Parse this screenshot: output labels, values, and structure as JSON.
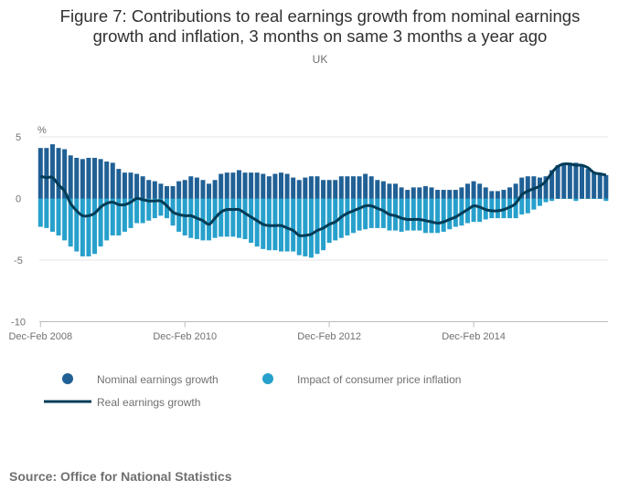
{
  "chart_data": {
    "type": "bar",
    "title_lines": [
      "Figure 7: Contributions to real earnings growth from nominal earnings",
      "growth and inflation, 3 months on same 3 months a year ago"
    ],
    "subtitle": "UK",
    "ylabel": "%",
    "ylim": [
      -10,
      5
    ],
    "yticks": [
      5,
      0,
      -5,
      -10
    ],
    "xtick_labels": [
      {
        "label": "Dec-Feb 2008",
        "index": 0
      },
      {
        "label": "Dec-Feb 2010",
        "index": 24
      },
      {
        "label": "Dec-Feb 2012",
        "index": 48
      },
      {
        "label": "Dec-Feb 2014",
        "index": 72
      }
    ],
    "grid": true,
    "stacked": true,
    "legend_placement": "bottom",
    "series": [
      {
        "name": "Nominal earnings growth",
        "kind": "bar",
        "color": "#206095",
        "values": [
          4.1,
          4.1,
          4.4,
          4.1,
          4.0,
          3.5,
          3.3,
          3.2,
          3.3,
          3.3,
          3.2,
          3.0,
          2.9,
          2.4,
          2.1,
          2.1,
          2.0,
          1.8,
          1.5,
          1.4,
          1.2,
          1.0,
          1.0,
          1.4,
          1.5,
          1.8,
          1.7,
          1.5,
          1.2,
          1.5,
          2.0,
          2.1,
          2.1,
          2.3,
          2.1,
          2.1,
          2.1,
          2.0,
          1.8,
          2.0,
          2.1,
          2.0,
          1.7,
          1.5,
          1.7,
          1.8,
          1.8,
          1.5,
          1.5,
          1.5,
          1.8,
          1.8,
          1.8,
          1.8,
          2.0,
          1.8,
          1.5,
          1.4,
          1.2,
          1.2,
          0.9,
          0.7,
          0.9,
          0.9,
          1.0,
          0.9,
          0.7,
          0.7,
          0.7,
          0.7,
          0.9,
          1.2,
          1.4,
          1.2,
          0.9,
          0.6,
          0.6,
          0.7,
          0.9,
          1.2,
          1.7,
          1.8,
          1.8,
          1.7,
          1.8,
          2.3,
          2.7,
          2.9,
          2.9,
          2.9,
          2.7,
          2.4,
          2.1,
          2.0,
          1.9
        ]
      },
      {
        "name": "Impact of consumer price inflation",
        "kind": "bar",
        "color": "#27a0cc",
        "values": [
          -2.3,
          -2.4,
          -2.7,
          -3.0,
          -3.4,
          -3.9,
          -4.3,
          -4.7,
          -4.7,
          -4.5,
          -3.9,
          -3.4,
          -3.0,
          -3.0,
          -2.7,
          -2.4,
          -2.0,
          -2.0,
          -1.8,
          -1.6,
          -1.4,
          -1.6,
          -2.2,
          -2.7,
          -3.0,
          -3.2,
          -3.3,
          -3.4,
          -3.4,
          -3.2,
          -3.1,
          -3.1,
          -3.1,
          -3.2,
          -3.3,
          -3.6,
          -3.9,
          -4.1,
          -4.2,
          -4.2,
          -4.3,
          -4.3,
          -4.3,
          -4.6,
          -4.7,
          -4.8,
          -4.5,
          -4.2,
          -3.6,
          -3.4,
          -3.2,
          -3.0,
          -2.8,
          -2.6,
          -2.5,
          -2.4,
          -2.4,
          -2.4,
          -2.6,
          -2.6,
          -2.7,
          -2.6,
          -2.6,
          -2.6,
          -2.8,
          -2.8,
          -2.8,
          -2.7,
          -2.5,
          -2.3,
          -2.2,
          -2.0,
          -1.9,
          -1.9,
          -1.7,
          -1.6,
          -1.6,
          -1.6,
          -1.6,
          -1.6,
          -1.3,
          -1.2,
          -0.9,
          -0.6,
          -0.3,
          -0.2,
          0.0,
          0.0,
          0.0,
          -0.2,
          0.0,
          0.0,
          0.0,
          0.0,
          -0.2
        ]
      },
      {
        "name": "Real earnings growth",
        "kind": "line",
        "color": "#003c57",
        "values": [
          1.8,
          1.7,
          1.7,
          1.1,
          0.6,
          -0.4,
          -1.0,
          -1.4,
          -1.4,
          -1.2,
          -0.7,
          -0.4,
          -0.3,
          -0.5,
          -0.5,
          -0.3,
          0.0,
          -0.1,
          -0.2,
          -0.2,
          -0.2,
          -0.6,
          -1.1,
          -1.3,
          -1.4,
          -1.4,
          -1.6,
          -1.8,
          -2.1,
          -1.6,
          -1.1,
          -0.9,
          -0.9,
          -0.9,
          -1.2,
          -1.5,
          -1.8,
          -2.1,
          -2.2,
          -2.2,
          -2.2,
          -2.4,
          -2.6,
          -3.0,
          -3.0,
          -2.9,
          -2.6,
          -2.4,
          -2.1,
          -1.9,
          -1.5,
          -1.2,
          -1.0,
          -0.8,
          -0.6,
          -0.6,
          -0.8,
          -1.0,
          -1.3,
          -1.4,
          -1.6,
          -1.7,
          -1.7,
          -1.7,
          -1.8,
          -1.9,
          -2.0,
          -1.9,
          -1.7,
          -1.5,
          -1.2,
          -0.9,
          -0.6,
          -0.7,
          -0.9,
          -1.0,
          -1.0,
          -0.9,
          -0.7,
          -0.4,
          0.3,
          0.6,
          0.8,
          1.0,
          1.4,
          2.1,
          2.6,
          2.8,
          2.8,
          2.7,
          2.7,
          2.5,
          2.1,
          2.0,
          1.9
        ]
      }
    ]
  },
  "source": "Source: Office for National Statistics"
}
